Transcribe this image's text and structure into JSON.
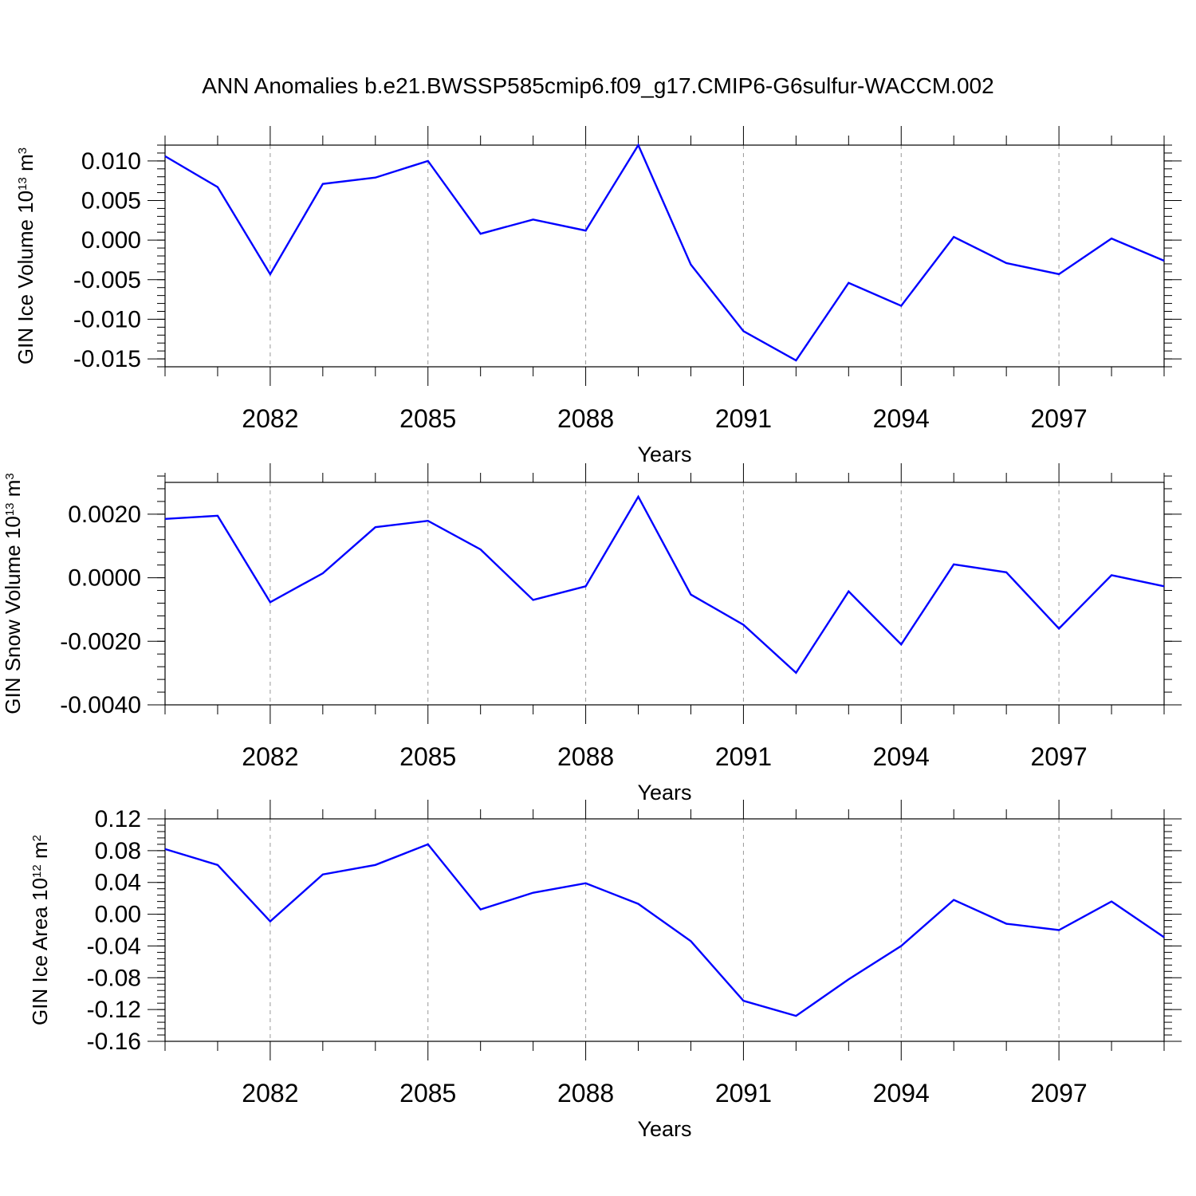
{
  "title": "ANN Anomalies b.e21.BWSSP585cmip6.f09_g17.CMIP6-G6sulfur-WACCM.002",
  "chart_data": [
    {
      "type": "line",
      "xlabel": "Years",
      "ylabel": "GIN Ice Volume 10",
      "ylabel_exp": "13",
      "ylabel_unit": "m",
      "ylabel_unit_exp": "3",
      "xlim": [
        2080,
        2099
      ],
      "ylim": [
        -0.016,
        0.012
      ],
      "x_ticks": [
        2082,
        2085,
        2088,
        2091,
        2094,
        2097
      ],
      "x_tick_labels": [
        "2082",
        "2085",
        "2088",
        "2091",
        "2094",
        "2097"
      ],
      "y_ticks": [
        -0.015,
        -0.01,
        -0.005,
        0.0,
        0.005,
        0.01
      ],
      "y_tick_labels": [
        "-0.015",
        "-0.010",
        "-0.005",
        "0.000",
        "0.005",
        "0.010"
      ],
      "grid": "vertical dashed at labeled years",
      "color": "#0000ff",
      "x": [
        2080,
        2081,
        2082,
        2083,
        2084,
        2085,
        2086,
        2087,
        2088,
        2089,
        2090,
        2091,
        2092,
        2093,
        2094,
        2095,
        2096,
        2097,
        2098,
        2099
      ],
      "values": [
        0.0106,
        0.0067,
        -0.0043,
        0.0071,
        0.0079,
        0.01,
        0.0008,
        0.0026,
        0.0012,
        0.012,
        -0.0031,
        -0.0115,
        -0.0152,
        -0.0054,
        -0.0083,
        0.0004,
        -0.0029,
        -0.0043,
        0.0002,
        -0.0026
      ]
    },
    {
      "type": "line",
      "xlabel": "Years",
      "ylabel": "GIN Snow Volume 10",
      "ylabel_exp": "13",
      "ylabel_unit": "m",
      "ylabel_unit_exp": "3",
      "xlim": [
        2080,
        2099
      ],
      "ylim": [
        -0.004,
        0.003
      ],
      "x_ticks": [
        2082,
        2085,
        2088,
        2091,
        2094,
        2097
      ],
      "x_tick_labels": [
        "2082",
        "2085",
        "2088",
        "2091",
        "2094",
        "2097"
      ],
      "y_ticks": [
        -0.004,
        -0.002,
        0.0,
        0.002
      ],
      "y_tick_labels": [
        "-0.0040",
        "-0.0020",
        "0.0000",
        "0.0020"
      ],
      "grid": "vertical dashed at labeled years",
      "color": "#0000ff",
      "x": [
        2080,
        2081,
        2082,
        2083,
        2084,
        2085,
        2086,
        2087,
        2088,
        2089,
        2090,
        2091,
        2092,
        2093,
        2094,
        2095,
        2096,
        2097,
        2098,
        2099
      ],
      "values": [
        0.00185,
        0.00195,
        -0.00077,
        0.00014,
        0.00159,
        0.00179,
        0.00089,
        -0.0007,
        -0.00027,
        0.00255,
        -0.00053,
        -0.00148,
        -0.00299,
        -0.00043,
        -0.0021,
        0.00042,
        0.00017,
        -0.0016,
        8e-05,
        -0.00027
      ]
    },
    {
      "type": "line",
      "xlabel": "Years",
      "ylabel": "GIN Ice Area 10",
      "ylabel_exp": "12",
      "ylabel_unit": "m",
      "ylabel_unit_exp": "2",
      "xlim": [
        2080,
        2099
      ],
      "ylim": [
        -0.16,
        0.12
      ],
      "x_ticks": [
        2082,
        2085,
        2088,
        2091,
        2094,
        2097
      ],
      "x_tick_labels": [
        "2082",
        "2085",
        "2088",
        "2091",
        "2094",
        "2097"
      ],
      "y_ticks": [
        -0.16,
        -0.12,
        -0.08,
        -0.04,
        0.0,
        0.04,
        0.08,
        0.12
      ],
      "y_tick_labels": [
        "-0.16",
        "-0.12",
        "-0.08",
        "-0.04",
        "0.00",
        "0.04",
        "0.08",
        "0.12"
      ],
      "grid": "vertical dashed at labeled years",
      "color": "#0000ff",
      "x": [
        2080,
        2081,
        2082,
        2083,
        2084,
        2085,
        2086,
        2087,
        2088,
        2089,
        2090,
        2091,
        2092,
        2093,
        2094,
        2095,
        2096,
        2097,
        2098,
        2099
      ],
      "values": [
        0.082,
        0.062,
        -0.009,
        0.05,
        0.062,
        0.088,
        0.006,
        0.027,
        0.039,
        0.013,
        -0.034,
        -0.109,
        -0.128,
        -0.082,
        -0.04,
        0.018,
        -0.012,
        -0.02,
        0.016,
        -0.029
      ]
    }
  ]
}
